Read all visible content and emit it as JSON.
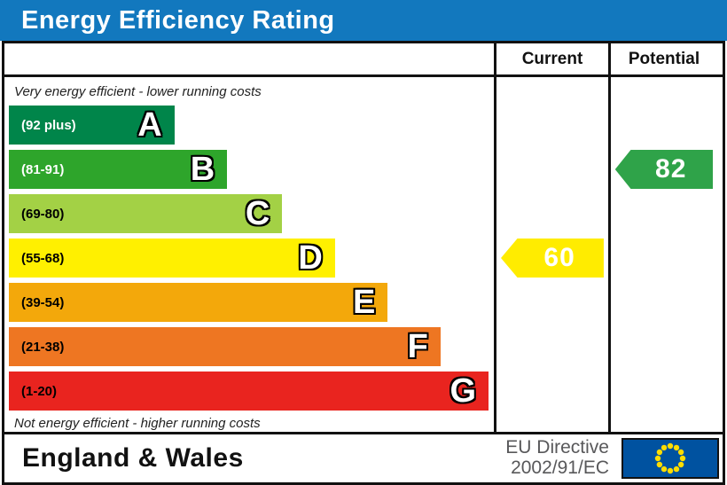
{
  "title": "Energy Efficiency Rating",
  "columns": {
    "current": "Current",
    "potential": "Potential"
  },
  "top_note": "Very energy efficient - lower running costs",
  "bottom_note": "Not energy efficient - higher running costs",
  "colors": {
    "header_blue": "#1278be",
    "border_black": "#111111",
    "flag_blue": "#0052a0",
    "flag_star_yellow": "#ffdd00"
  },
  "bands": [
    {
      "letter": "A",
      "range": "(92 plus)",
      "color": "#00854a",
      "width_pct": 34.5,
      "label_color": "#ffffff"
    },
    {
      "letter": "B",
      "range": "(81-91)",
      "color": "#2ea52b",
      "width_pct": 45.5,
      "label_color": "#ffffff"
    },
    {
      "letter": "C",
      "range": "(69-80)",
      "color": "#a3d145",
      "width_pct": 57,
      "label_color": "#000000"
    },
    {
      "letter": "D",
      "range": "(55-68)",
      "color": "#fff000",
      "width_pct": 68,
      "label_color": "#000000"
    },
    {
      "letter": "E",
      "range": "(39-54)",
      "color": "#f3a80b",
      "width_pct": 79,
      "label_color": "#000000"
    },
    {
      "letter": "F",
      "range": "(21-38)",
      "color": "#ee7622",
      "width_pct": 90,
      "label_color": "#000000"
    },
    {
      "letter": "G",
      "range": "(1-20)",
      "color": "#e9241f",
      "width_pct": 100,
      "label_color": "#000000"
    }
  ],
  "current": {
    "value": "60",
    "band_index": 3,
    "color": "#ffec00"
  },
  "potential": {
    "value": "82",
    "band_index": 1,
    "color": "#2fa349"
  },
  "footer": {
    "region": "England & Wales",
    "directive_line1": "EU Directive",
    "directive_line2": "2002/91/EC"
  },
  "chart_data": {
    "type": "bar",
    "title": "Energy Efficiency Rating",
    "orientation": "horizontal",
    "categories": [
      "A",
      "B",
      "C",
      "D",
      "E",
      "F",
      "G"
    ],
    "category_ranges": [
      "92 plus",
      "81-91",
      "69-80",
      "55-68",
      "39-54",
      "21-38",
      "1-20"
    ],
    "bar_lengths_pct": [
      34.5,
      45.5,
      57,
      68,
      79,
      90,
      100
    ],
    "series": [
      {
        "name": "Current",
        "value": 60,
        "band": "D"
      },
      {
        "name": "Potential",
        "value": 82,
        "band": "B"
      }
    ],
    "annotations": [
      "Very energy efficient - lower running costs",
      "Not energy efficient - higher running costs"
    ],
    "footer": [
      "England & Wales",
      "EU Directive 2002/91/EC"
    ],
    "legend_position": "none",
    "grid": false
  }
}
